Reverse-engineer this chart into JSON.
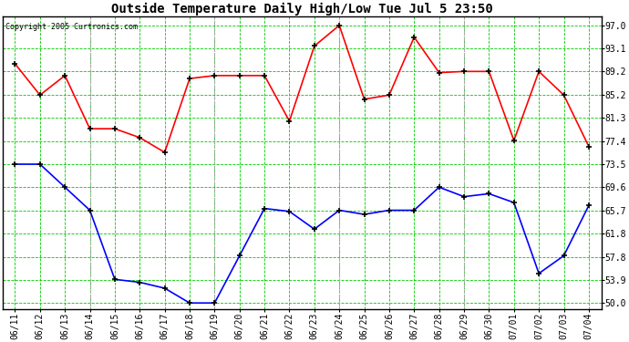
{
  "title": "Outside Temperature Daily High/Low Tue Jul 5 23:50",
  "copyright": "Copyright 2005 Curtronics.com",
  "dates": [
    "06/11",
    "06/12",
    "06/13",
    "06/14",
    "06/15",
    "06/16",
    "06/17",
    "06/18",
    "06/19",
    "06/20",
    "06/21",
    "06/22",
    "06/23",
    "06/24",
    "06/25",
    "06/26",
    "06/27",
    "06/28",
    "06/29",
    "06/30",
    "07/01",
    "07/02",
    "07/03",
    "07/04"
  ],
  "high_temps": [
    90.5,
    85.2,
    88.5,
    79.5,
    79.5,
    78.0,
    75.5,
    88.0,
    88.5,
    88.5,
    88.5,
    80.8,
    93.5,
    97.0,
    84.5,
    85.2,
    95.0,
    89.0,
    89.2,
    89.2,
    77.5,
    89.2,
    85.2,
    76.5
  ],
  "low_temps": [
    73.5,
    73.5,
    69.6,
    65.7,
    54.0,
    53.5,
    52.5,
    50.0,
    50.0,
    58.0,
    66.0,
    65.5,
    62.5,
    65.7,
    65.0,
    65.7,
    65.7,
    69.6,
    68.0,
    68.5,
    67.0,
    55.0,
    58.0,
    66.5
  ],
  "yticks": [
    50.0,
    53.9,
    57.8,
    61.8,
    65.7,
    69.6,
    73.5,
    77.4,
    81.3,
    85.2,
    89.2,
    93.1,
    97.0
  ],
  "ylim": [
    49.0,
    98.5
  ],
  "high_color": "red",
  "low_color": "blue",
  "bg_color": "white",
  "plot_bg_color": "white",
  "grid_color": "#00cc00",
  "gray_vline_color": "#aaaaaa",
  "gray_vline_positions": [
    3,
    8,
    13,
    18
  ],
  "title_fontsize": 10,
  "copyright_fontsize": 6,
  "marker": "+",
  "marker_size": 5,
  "marker_edge_width": 1.2,
  "linewidth": 1.2,
  "tick_fontsize": 7
}
